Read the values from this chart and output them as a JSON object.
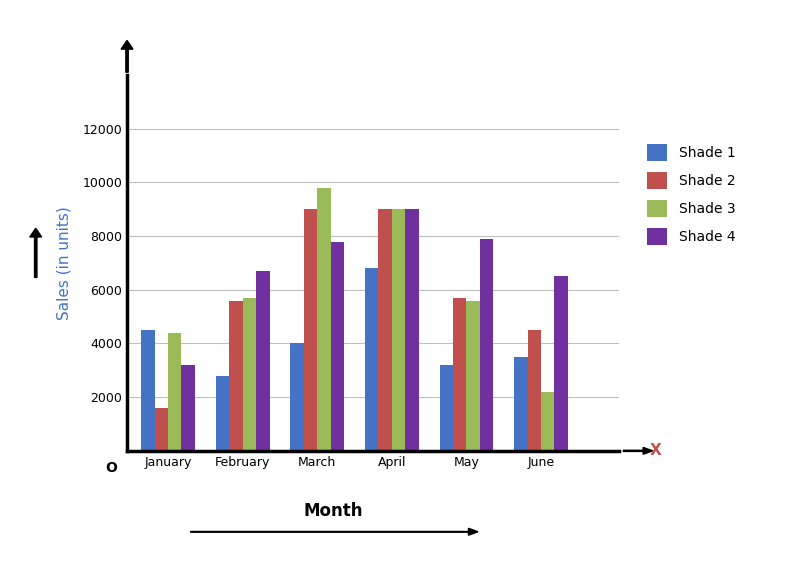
{
  "categories": [
    "January",
    "February",
    "March",
    "April",
    "May",
    "June"
  ],
  "series": {
    "Shade 1": [
      4500,
      2800,
      4000,
      6800,
      3200,
      3500
    ],
    "Shade 2": [
      1600,
      5600,
      9000,
      9000,
      5700,
      4500
    ],
    "Shade 3": [
      4400,
      5700,
      9800,
      9000,
      5600,
      2200
    ],
    "Shade 4": [
      3200,
      6700,
      7800,
      9000,
      7900,
      6500
    ]
  },
  "colors": {
    "Shade 1": "#4472C4",
    "Shade 2": "#C0504D",
    "Shade 3": "#9BBB59",
    "Shade 4": "#7030A0"
  },
  "ylabel": "Sales (in units)",
  "xlabel_arrow": "Month",
  "xlabel_axis": "X",
  "ylim": [
    0,
    14000
  ],
  "yticks": [
    0,
    2000,
    4000,
    6000,
    8000,
    10000,
    12000
  ],
  "background_color": "#ffffff",
  "bar_width": 0.18,
  "legend_fontsize": 10,
  "axis_fontsize": 11,
  "tick_fontsize": 9,
  "ylabel_color": "#4472C4",
  "xlabel_axis_color": "#C0504D"
}
